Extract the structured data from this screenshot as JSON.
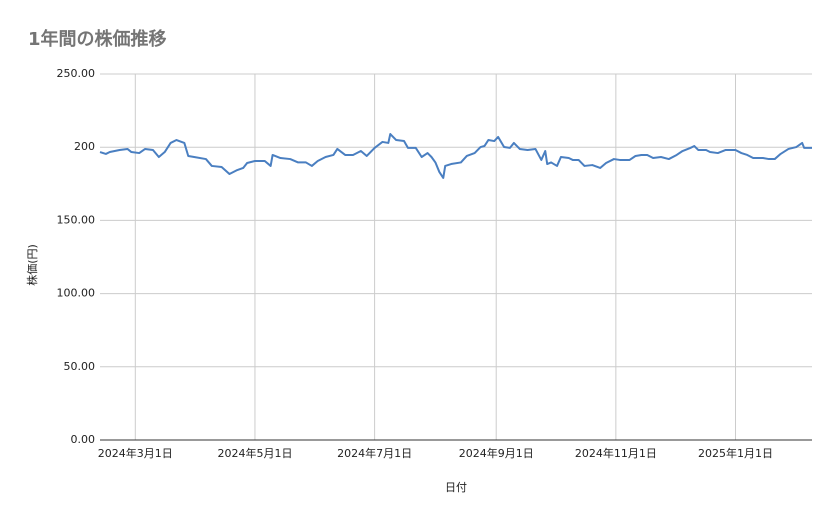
{
  "chart_data": {
    "type": "line",
    "title": "1年間の株価推移",
    "x_label": "日付",
    "y_label": "株価(円)",
    "x": [
      "2024-02-12",
      "2024-02-15",
      "2024-02-17",
      "2024-02-22",
      "2024-02-26",
      "2024-02-28",
      "2024-03-03",
      "2024-03-06",
      "2024-03-10",
      "2024-03-13",
      "2024-03-16",
      "2024-03-19",
      "2024-03-22",
      "2024-03-26",
      "2024-03-28",
      "2024-03-31",
      "2024-04-06",
      "2024-04-09",
      "2024-04-14",
      "2024-04-18",
      "2024-04-22",
      "2024-04-25",
      "2024-04-27",
      "2024-05-01",
      "2024-05-06",
      "2024-05-09",
      "2024-05-10",
      "2024-05-14",
      "2024-05-19",
      "2024-05-23",
      "2024-05-27",
      "2024-05-30",
      "2024-06-02",
      "2024-06-06",
      "2024-06-10",
      "2024-06-12",
      "2024-06-16",
      "2024-06-20",
      "2024-06-24",
      "2024-06-27",
      "2024-07-01",
      "2024-07-05",
      "2024-07-08",
      "2024-07-09",
      "2024-07-12",
      "2024-07-16",
      "2024-07-18",
      "2024-07-22",
      "2024-07-25",
      "2024-07-28",
      "2024-07-30",
      "2024-08-01",
      "2024-08-03",
      "2024-08-05",
      "2024-08-06",
      "2024-08-09",
      "2024-08-14",
      "2024-08-17",
      "2024-08-21",
      "2024-08-24",
      "2024-08-26",
      "2024-08-28",
      "2024-08-31",
      "2024-09-02",
      "2024-09-05",
      "2024-09-08",
      "2024-09-10",
      "2024-09-13",
      "2024-09-17",
      "2024-09-21",
      "2024-09-24",
      "2024-09-26",
      "2024-09-27",
      "2024-09-29",
      "2024-10-02",
      "2024-10-04",
      "2024-10-08",
      "2024-10-10",
      "2024-10-13",
      "2024-10-16",
      "2024-10-20",
      "2024-10-24",
      "2024-10-27",
      "2024-10-31",
      "2024-11-03",
      "2024-11-08",
      "2024-11-11",
      "2024-11-14",
      "2024-11-17",
      "2024-11-20",
      "2024-11-24",
      "2024-11-28",
      "2024-12-02",
      "2024-12-05",
      "2024-12-09",
      "2024-12-11",
      "2024-12-13",
      "2024-12-17",
      "2024-12-19",
      "2024-12-23",
      "2024-12-27",
      "2025-01-01",
      "2025-01-04",
      "2025-01-07",
      "2025-01-10",
      "2025-01-15",
      "2025-01-18",
      "2025-01-21",
      "2025-01-24",
      "2025-01-28",
      "2025-02-01",
      "2025-02-04",
      "2025-02-05",
      "2025-02-09"
    ],
    "series": [
      {
        "name": "株価",
        "color": "#4a7fc1",
        "values": [
          196.7,
          195.4,
          196.7,
          198.1,
          198.8,
          196.7,
          196.0,
          198.8,
          198.1,
          193.3,
          196.7,
          202.9,
          204.9,
          202.9,
          194.0,
          193.3,
          191.9,
          187.2,
          186.5,
          181.7,
          184.4,
          185.8,
          189.2,
          190.6,
          190.6,
          187.2,
          194.7,
          192.6,
          191.9,
          189.6,
          189.6,
          187.2,
          190.6,
          193.3,
          194.7,
          198.8,
          194.7,
          194.7,
          197.4,
          194.0,
          199.5,
          203.6,
          202.9,
          209.0,
          204.9,
          204.2,
          199.5,
          199.5,
          193.3,
          196.0,
          193.3,
          189.6,
          183.1,
          179.0,
          187.2,
          188.5,
          189.6,
          194.0,
          196.0,
          200.1,
          200.8,
          204.9,
          204.2,
          207.0,
          200.1,
          199.5,
          202.9,
          198.8,
          198.1,
          198.8,
          191.3,
          197.4,
          188.5,
          189.6,
          187.2,
          193.3,
          192.6,
          191.3,
          191.3,
          187.2,
          187.8,
          185.8,
          189.2,
          191.9,
          191.3,
          191.3,
          194.0,
          194.7,
          194.7,
          192.6,
          193.3,
          191.9,
          194.7,
          197.4,
          199.5,
          200.8,
          198.1,
          198.1,
          196.7,
          196.0,
          198.1,
          198.1,
          196.0,
          194.7,
          192.6,
          192.6,
          191.9,
          191.9,
          195.4,
          198.8,
          200.1,
          202.9,
          199.5,
          199.5
        ]
      }
    ],
    "xlim": [
      "2024-02-12",
      "2025-02-09"
    ],
    "xticks": [
      {
        "value": "2024-03-01",
        "label": "2024年3月1日"
      },
      {
        "value": "2024-05-01",
        "label": "2024年5月1日"
      },
      {
        "value": "2024-07-01",
        "label": "2024年7月1日"
      },
      {
        "value": "2024-09-01",
        "label": "2024年9月1日"
      },
      {
        "value": "2024-11-01",
        "label": "2024年11月1日"
      },
      {
        "value": "2025-01-01",
        "label": "2025年1月1日"
      }
    ],
    "ylim": [
      0,
      250
    ],
    "yticks": [
      {
        "value": 0,
        "label": "0.00"
      },
      {
        "value": 50,
        "label": "50.00"
      },
      {
        "value": 100,
        "label": "100.00"
      },
      {
        "value": 150,
        "label": "150.00"
      },
      200,
      {
        "value": 250,
        "label": "250.00"
      }
    ],
    "grid": true
  }
}
